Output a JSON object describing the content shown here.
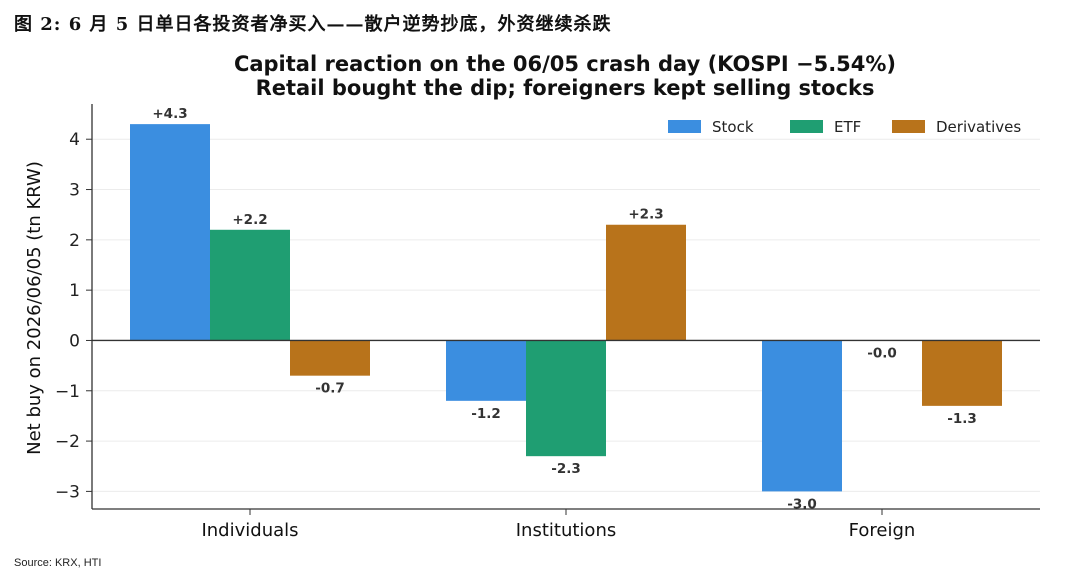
{
  "figure_caption": "图 2:  6 月 5 日单日各投资者净买入——散户逆势抄底，外资继续杀跌",
  "source": "Source: KRX, HTI",
  "chart_data": {
    "type": "bar",
    "title": "Capital reaction on the 06/05 crash day (KOSPI −5.54%)",
    "subtitle": "Retail bought the dip; foreigners kept selling stocks",
    "xlabel": "",
    "ylabel": "Net buy on 2026/06/05 (tn KRW)",
    "ylim": [
      -3.35,
      4.7
    ],
    "yticks": [
      -3,
      -2,
      -1,
      0,
      1,
      2,
      3,
      4
    ],
    "ytick_labels": [
      "−3",
      "−2",
      "−1",
      "0",
      "1",
      "2",
      "3",
      "4"
    ],
    "categories": [
      "Individuals",
      "Institutions",
      "Foreign"
    ],
    "series": [
      {
        "name": "Stock",
        "color": "#3b8ee0",
        "values": [
          4.3,
          -1.2,
          -3.0
        ],
        "labels": [
          "+4.3",
          "-1.2",
          "-3.0"
        ]
      },
      {
        "name": "ETF",
        "color": "#1f9e72",
        "values": [
          2.2,
          -2.3,
          -0.0
        ],
        "labels": [
          "+2.2",
          "-2.3",
          "-0.0"
        ]
      },
      {
        "name": "Derivatives",
        "color": "#b8731b",
        "values": [
          -0.7,
          2.3,
          -1.3
        ],
        "labels": [
          "-0.7",
          "+2.3",
          "-1.3"
        ]
      }
    ],
    "grid": true,
    "legend_position": "top-right"
  }
}
